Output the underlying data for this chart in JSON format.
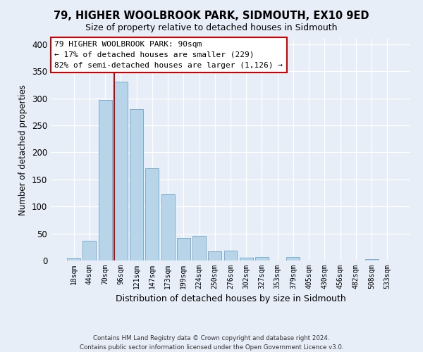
{
  "title": "79, HIGHER WOOLBROOK PARK, SIDMOUTH, EX10 9ED",
  "subtitle": "Size of property relative to detached houses in Sidmouth",
  "xlabel": "Distribution of detached houses by size in Sidmouth",
  "ylabel": "Number of detached properties",
  "bar_labels": [
    "18sqm",
    "44sqm",
    "70sqm",
    "96sqm",
    "121sqm",
    "147sqm",
    "173sqm",
    "199sqm",
    "224sqm",
    "250sqm",
    "276sqm",
    "302sqm",
    "327sqm",
    "353sqm",
    "379sqm",
    "405sqm",
    "430sqm",
    "456sqm",
    "482sqm",
    "508sqm",
    "533sqm"
  ],
  "bar_values": [
    4,
    37,
    297,
    330,
    280,
    170,
    123,
    42,
    46,
    17,
    18,
    5,
    6,
    0,
    7,
    0,
    0,
    0,
    0,
    2,
    0
  ],
  "bar_color": "#b8d4e8",
  "bar_edge_color": "#7aaece",
  "vline_color": "#cc0000",
  "vline_x_index": 3,
  "ylim": [
    0,
    410
  ],
  "yticks": [
    0,
    50,
    100,
    150,
    200,
    250,
    300,
    350,
    400
  ],
  "annotation_title": "79 HIGHER WOOLBROOK PARK: 90sqm",
  "annotation_line1": "← 17% of detached houses are smaller (229)",
  "annotation_line2": "82% of semi-detached houses are larger (1,126) →",
  "annotation_box_color": "#ffffff",
  "annotation_box_edge": "#cc0000",
  "footer_line1": "Contains HM Land Registry data © Crown copyright and database right 2024.",
  "footer_line2": "Contains public sector information licensed under the Open Government Licence v3.0.",
  "background_color": "#e8eef7",
  "plot_background": "#e8eef7"
}
